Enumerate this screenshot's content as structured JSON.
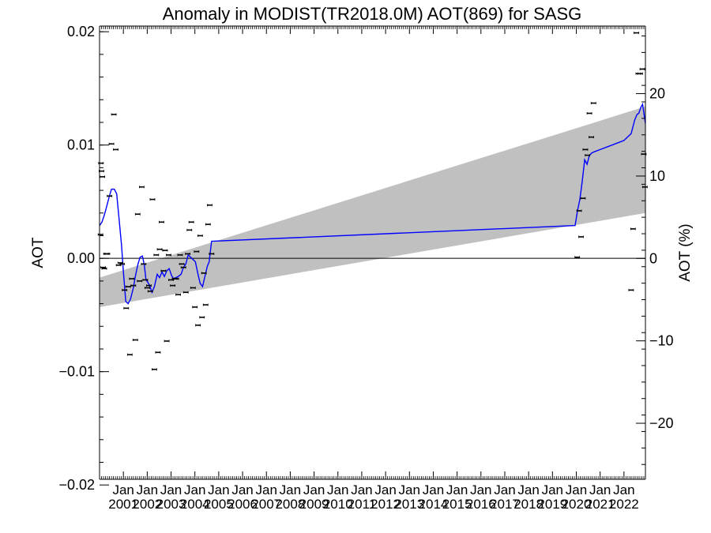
{
  "chart_data": {
    "type": "scatter",
    "title": "Anomaly in MODIST(TR2018.0M) AOT(869) for SASG",
    "ylabel_left": "AOT",
    "ylabel_right": "AOT (%)",
    "ylim": [
      -0.0195,
      0.0205
    ],
    "ylim_right": [
      -26.8,
      28.2
    ],
    "xlim": [
      2000.0,
      2022.9
    ],
    "yticks_left": [
      {
        "value": 0.02,
        "label": "0.02"
      },
      {
        "value": 0.01,
        "label": "0.01"
      },
      {
        "value": 0.0,
        "label": "0.00"
      },
      {
        "value": -0.01,
        "label": "−0.01"
      },
      {
        "value": -0.02,
        "label": "−0.02"
      }
    ],
    "yticks_right": [
      {
        "value": 20,
        "label": "20"
      },
      {
        "value": 10,
        "label": "10"
      },
      {
        "value": 0,
        "label": "0"
      },
      {
        "value": -10,
        "label": "−10"
      },
      {
        "value": -20,
        "label": "−20"
      }
    ],
    "xticks": [
      {
        "value": 2001.0,
        "label": "2001"
      },
      {
        "value": 2002.0,
        "label": "2002"
      },
      {
        "value": 2003.0,
        "label": "2003"
      },
      {
        "value": 2004.0,
        "label": "2004"
      },
      {
        "value": 2005.0,
        "label": "2005"
      },
      {
        "value": 2006.0,
        "label": "2006"
      },
      {
        "value": 2007.0,
        "label": "2007"
      },
      {
        "value": 2008.0,
        "label": "2008"
      },
      {
        "value": 2009.0,
        "label": "2009"
      },
      {
        "value": 2010.0,
        "label": "2010"
      },
      {
        "value": 2011.0,
        "label": "2011"
      },
      {
        "value": 2012.0,
        "label": "2012"
      },
      {
        "value": 2013.0,
        "label": "2013"
      },
      {
        "value": 2014.0,
        "label": "2014"
      },
      {
        "value": 2015.0,
        "label": "2015"
      },
      {
        "value": 2016.0,
        "label": "2016"
      },
      {
        "value": 2017.0,
        "label": "2017"
      },
      {
        "value": 2018.0,
        "label": "2018"
      },
      {
        "value": 2019.0,
        "label": "2019"
      },
      {
        "value": 2020.0,
        "label": "2020"
      },
      {
        "value": 2021.0,
        "label": "2021"
      },
      {
        "value": 2022.0,
        "label": "2022"
      }
    ],
    "xtick_month_label": "Jan",
    "trend_band": {
      "x": [
        2000.0,
        2022.9
      ],
      "upper": [
        -0.0017,
        0.0134
      ],
      "lower": [
        -0.0043,
        0.004
      ],
      "color": "#c0c0c0"
    },
    "zero_line": 0.0,
    "points": [
      {
        "x": 2000.04,
        "y": 0.0021
      },
      {
        "x": 2000.06,
        "y": 0.0084
      },
      {
        "x": 2000.08,
        "y": 0.0077
      },
      {
        "x": 2000.12,
        "y": 0.0072
      },
      {
        "x": 2000.15,
        "y": -0.0008
      },
      {
        "x": 2000.2,
        "y": -0.0009
      },
      {
        "x": 2000.27,
        "y": 0.0004
      },
      {
        "x": 2000.33,
        "y": 0.0004
      },
      {
        "x": 2000.42,
        "y": 0.0055
      },
      {
        "x": 2000.5,
        "y": 0.0101
      },
      {
        "x": 2000.6,
        "y": 0.0127
      },
      {
        "x": 2000.68,
        "y": 0.0096
      },
      {
        "x": 2000.8,
        "y": -0.0006
      },
      {
        "x": 2000.87,
        "y": -0.0004
      },
      {
        "x": 2000.95,
        "y": -0.0005
      },
      {
        "x": 2001.05,
        "y": -0.0028
      },
      {
        "x": 2001.12,
        "y": -0.0044
      },
      {
        "x": 2001.2,
        "y": -0.0025
      },
      {
        "x": 2001.27,
        "y": -0.0085
      },
      {
        "x": 2001.35,
        "y": -0.0018
      },
      {
        "x": 2001.42,
        "y": -0.0024
      },
      {
        "x": 2001.5,
        "y": -0.0072
      },
      {
        "x": 2001.6,
        "y": 0.0039
      },
      {
        "x": 2001.68,
        "y": -0.002
      },
      {
        "x": 2001.77,
        "y": 0.0063
      },
      {
        "x": 2001.85,
        "y": -0.0005
      },
      {
        "x": 2001.92,
        "y": -0.0019
      },
      {
        "x": 2002.0,
        "y": -0.0026
      },
      {
        "x": 2002.07,
        "y": -0.0024
      },
      {
        "x": 2002.13,
        "y": -0.0029
      },
      {
        "x": 2002.22,
        "y": 0.0052
      },
      {
        "x": 2002.3,
        "y": -0.0098
      },
      {
        "x": 2002.38,
        "y": 0.0003
      },
      {
        "x": 2002.45,
        "y": -0.0083
      },
      {
        "x": 2002.52,
        "y": 0.0008
      },
      {
        "x": 2002.6,
        "y": 0.0032
      },
      {
        "x": 2002.68,
        "y": -0.0011
      },
      {
        "x": 2002.75,
        "y": 0.0007
      },
      {
        "x": 2002.82,
        "y": -0.0073
      },
      {
        "x": 2002.9,
        "y": 0.0003
      },
      {
        "x": 2003.0,
        "y": -0.0019
      },
      {
        "x": 2003.07,
        "y": -0.0024
      },
      {
        "x": 2003.15,
        "y": -0.0018
      },
      {
        "x": 2003.22,
        "y": -0.0018
      },
      {
        "x": 2003.3,
        "y": -0.0032
      },
      {
        "x": 2003.38,
        "y": 0.0003
      },
      {
        "x": 2003.45,
        "y": -0.0005
      },
      {
        "x": 2003.52,
        "y": -0.0008
      },
      {
        "x": 2003.62,
        "y": -0.003
      },
      {
        "x": 2003.7,
        "y": 0.0004
      },
      {
        "x": 2003.77,
        "y": 0.0025
      },
      {
        "x": 2003.85,
        "y": 0.0032
      },
      {
        "x": 2003.92,
        "y": -0.0026
      },
      {
        "x": 2004.0,
        "y": -0.0043
      },
      {
        "x": 2004.07,
        "y": 0.0006
      },
      {
        "x": 2004.13,
        "y": -0.0059
      },
      {
        "x": 2004.22,
        "y": 0.002
      },
      {
        "x": 2004.3,
        "y": -0.0052
      },
      {
        "x": 2004.38,
        "y": -0.0013
      },
      {
        "x": 2004.45,
        "y": -0.0041
      },
      {
        "x": 2004.55,
        "y": 0.003
      },
      {
        "x": 2004.62,
        "y": 0.0047
      },
      {
        "x": 2004.7,
        "y": 0.0004
      },
      {
        "x": 2020.04,
        "y": 0.0001
      },
      {
        "x": 2020.12,
        "y": 0.0042
      },
      {
        "x": 2020.2,
        "y": 0.0019
      },
      {
        "x": 2020.28,
        "y": 0.0053
      },
      {
        "x": 2020.38,
        "y": 0.0096
      },
      {
        "x": 2020.47,
        "y": 0.0091
      },
      {
        "x": 2020.55,
        "y": 0.0128
      },
      {
        "x": 2020.63,
        "y": 0.0107
      },
      {
        "x": 2020.72,
        "y": 0.0137
      },
      {
        "x": 2022.3,
        "y": -0.0028
      },
      {
        "x": 2022.38,
        "y": 0.0026
      },
      {
        "x": 2022.52,
        "y": 0.0199
      },
      {
        "x": 2022.6,
        "y": 0.0163
      },
      {
        "x": 2022.68,
        "y": 0.0163
      },
      {
        "x": 2022.77,
        "y": 0.0167
      },
      {
        "x": 2022.83,
        "y": 0.0092
      },
      {
        "x": 2022.88,
        "y": 0.0063
      }
    ],
    "smoothed_line": {
      "color": "#0000ff",
      "x": [
        2000.0,
        2000.1,
        2000.2,
        2000.3,
        2000.4,
        2000.5,
        2000.62,
        2000.72,
        2000.82,
        2000.92,
        2001.0,
        2001.1,
        2001.2,
        2001.3,
        2001.42,
        2001.5,
        2001.6,
        2001.7,
        2001.8,
        2001.88,
        2001.95,
        2002.02,
        2002.1,
        2002.2,
        2002.3,
        2002.42,
        2002.52,
        2002.62,
        2002.72,
        2002.82,
        2002.92,
        2003.02,
        2003.1,
        2003.2,
        2003.3,
        2003.42,
        2003.52,
        2003.62,
        2003.72,
        2003.82,
        2003.92,
        2004.02,
        2004.12,
        2004.22,
        2004.32,
        2004.42,
        2004.52,
        2004.6,
        2004.7,
        2019.95,
        2020.05,
        2020.15,
        2020.25,
        2020.35,
        2020.45,
        2020.55,
        2020.65,
        2020.75,
        2021.0,
        2021.5,
        2022.0,
        2022.3,
        2022.45,
        2022.55,
        2022.62,
        2022.7,
        2022.78,
        2022.85,
        2022.9
      ],
      "y": [
        0.0029,
        0.0032,
        0.0038,
        0.0046,
        0.0054,
        0.0061,
        0.0061,
        0.0057,
        0.0035,
        0.0012,
        -0.0012,
        -0.0038,
        -0.004,
        -0.0036,
        -0.0026,
        -0.0016,
        -0.0006,
        0.0001,
        0.0002,
        -0.0006,
        -0.0019,
        -0.0021,
        -0.0024,
        -0.003,
        -0.0025,
        -0.0014,
        -0.0017,
        -0.0012,
        -0.0016,
        -0.0011,
        -0.0009,
        -0.0015,
        -0.0018,
        -0.0017,
        -0.0016,
        -0.0014,
        -0.0008,
        -0.0005,
        0.0003,
        0.0001,
        -0.0001,
        -0.0003,
        -0.0013,
        -0.0022,
        -0.0025,
        -0.0016,
        -0.0007,
        -0.0003,
        0.0015,
        0.0029,
        0.0042,
        0.0052,
        0.0068,
        0.0087,
        0.0083,
        0.0091,
        0.0093,
        0.0094,
        0.0096,
        0.01,
        0.0104,
        0.011,
        0.0122,
        0.0127,
        0.0128,
        0.0133,
        0.0136,
        0.0126,
        0.0119
      ]
    }
  }
}
